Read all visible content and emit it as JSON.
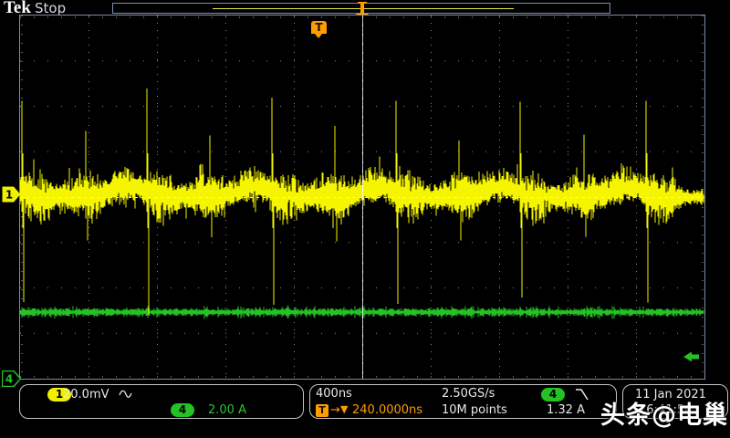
{
  "header": {
    "brand": "Tek",
    "status": "Stop"
  },
  "graticule": {
    "hdivs": 10,
    "vdivs": 8
  },
  "trigger": {
    "badge": "T",
    "delay_arrow": "→",
    "delay_marker": "▼",
    "delay": "240.0000ns",
    "source_badge": "4",
    "slope_icon": "falling-edge-icon",
    "level": "1.32 A"
  },
  "channels": {
    "ch1": {
      "badge": "1",
      "scale": "20.0mV",
      "coupling_icon": "ac-sine-icon",
      "color": "#f5f500"
    },
    "ch4": {
      "badge": "4",
      "scale": "2.00 A",
      "color": "#25c125"
    }
  },
  "horizontal": {
    "scale": "400ns",
    "sample_rate": "2.50GS/s",
    "record_length": "10M points"
  },
  "datetime": {
    "date": "11 Jan 2021",
    "time": "16:41:50"
  },
  "watermark": "头条@电巢",
  "colors": {
    "background": "#000000",
    "grid_border": "#7d8fa6",
    "grid_dots": "#9aa3ad",
    "crosshair": "#f0f0f0",
    "accent_orange": "#ff9d00",
    "readout_border": "#c4c4c4",
    "text": "#e8e8e8"
  },
  "waveforms": {
    "seed": 20210111,
    "ch1": {
      "baseline": 199,
      "noise": 7,
      "majors": [
        2,
        139,
        276,
        412,
        548,
        686
      ],
      "minors": [
        72,
        208,
        345,
        481,
        618
      ],
      "major_up": 110,
      "major_down": 117,
      "minor_up": 69,
      "minor_down": 44
    },
    "ch4": {
      "baseline": 325,
      "noise": 3
    }
  }
}
